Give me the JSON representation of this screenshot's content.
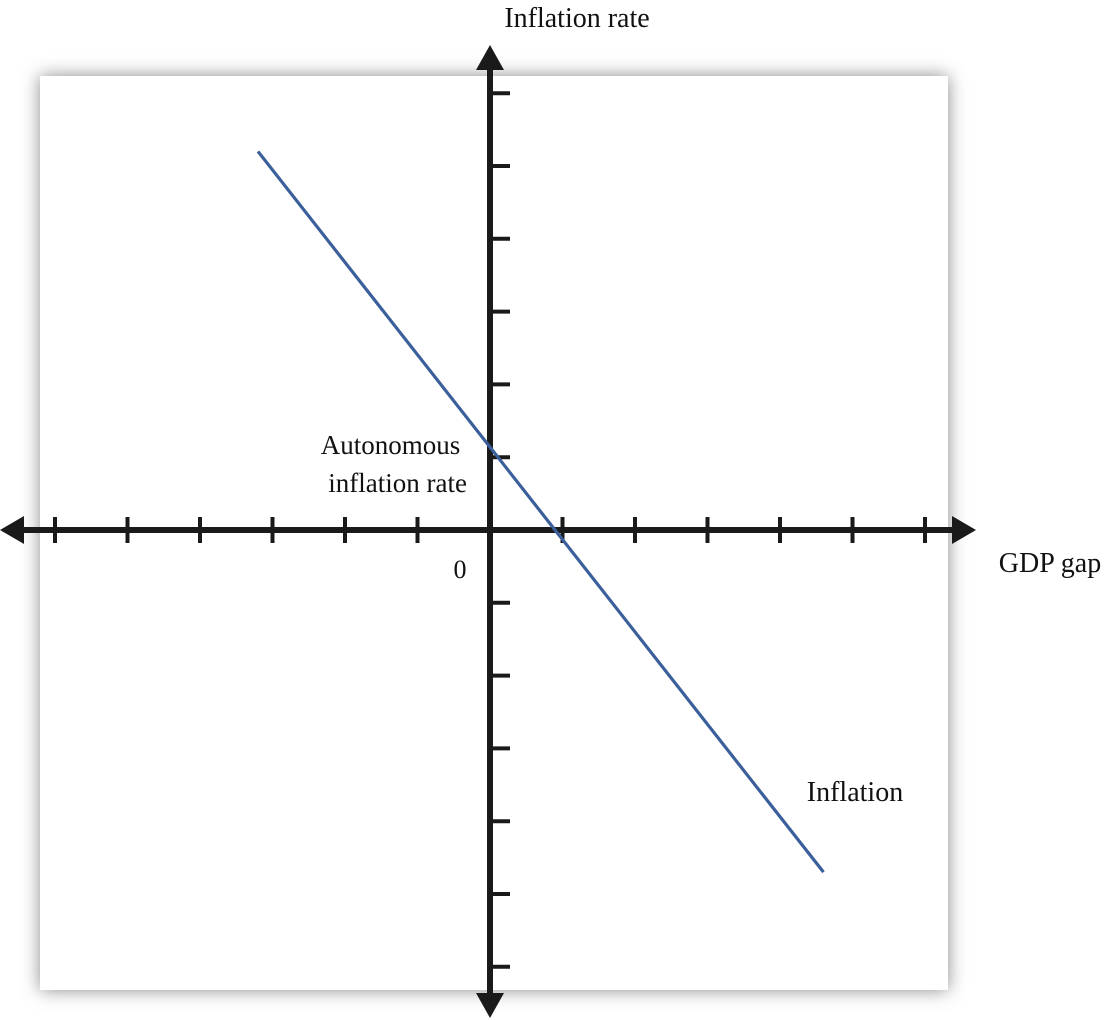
{
  "chart_data": {
    "type": "line",
    "title": "",
    "xlabel": "GDP gap",
    "ylabel": "Inflation rate",
    "origin_label": "0",
    "xlim": [
      -6,
      6
    ],
    "ylim": [
      -6,
      6
    ],
    "x_ticks": [
      -6,
      -5,
      -4,
      -3,
      -2,
      -1,
      1,
      2,
      3,
      4,
      5,
      6
    ],
    "y_ticks": [
      -6,
      -5,
      -4,
      -3,
      -2,
      -1,
      1,
      2,
      3,
      4,
      5,
      6
    ],
    "grid": false,
    "series": [
      {
        "name": "Inflation",
        "x": [
          -3.2,
          4.6
        ],
        "y": [
          5.2,
          -4.7
        ]
      }
    ],
    "annotations": [
      {
        "id": "autonomous",
        "lines": [
          "Autonomous",
          "inflation rate"
        ],
        "x": 0,
        "y": 1
      }
    ],
    "colors": {
      "axis": "#1a1a1a",
      "line": "#3a5f9a",
      "panel": "#ffffff",
      "shadow": "#8a8a8a"
    }
  }
}
